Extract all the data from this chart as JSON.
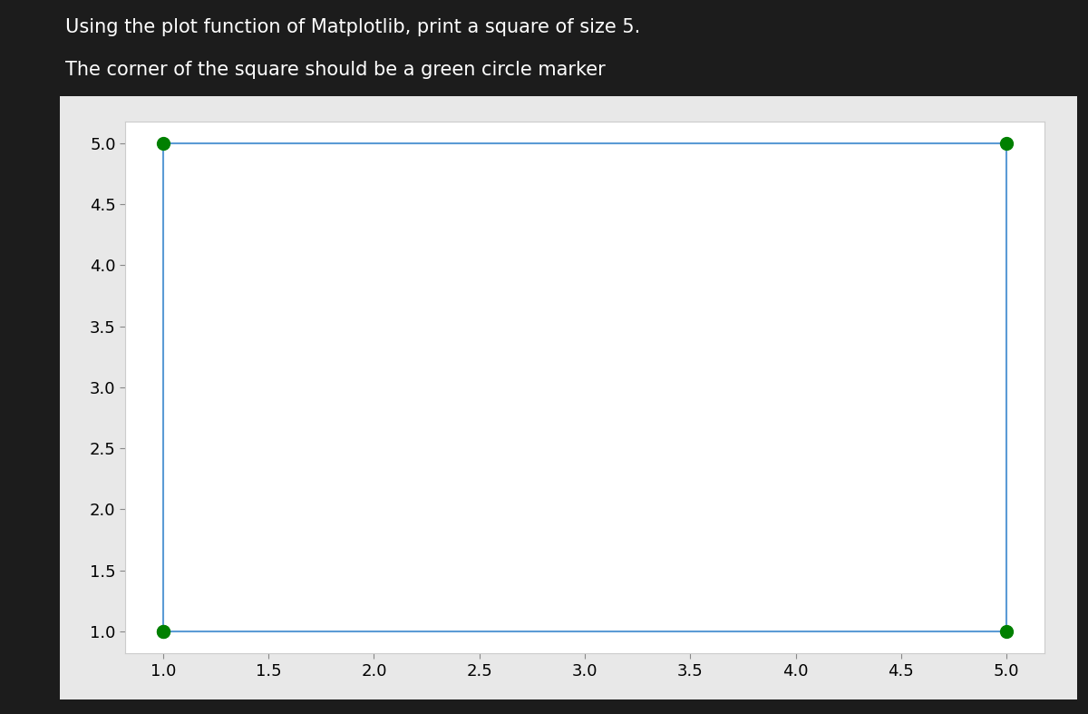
{
  "x": [
    1,
    1,
    5,
    5,
    1
  ],
  "y": [
    1,
    5,
    5,
    1,
    1
  ],
  "line_color": "#5B9BD5",
  "marker": "o",
  "marker_color": "green",
  "marker_size": 10,
  "title_line1": "Using the plot function of Matplotlib, print a square of size 5.",
  "title_line2": "The corner of the square should be a green circle marker",
  "title_fontsize": 15,
  "title_color": "#ffffff",
  "background_color": "#1c1c1c",
  "plot_area_color": "#e8e8e8",
  "plot_bg_color": "#ffffff",
  "fig_width": 12.0,
  "fig_height": 7.87,
  "xticks": [
    1.0,
    1.5,
    2.0,
    2.5,
    3.0,
    3.5,
    4.0,
    4.5,
    5.0
  ],
  "yticks": [
    1.0,
    1.5,
    2.0,
    2.5,
    3.0,
    3.5,
    4.0,
    4.5,
    5.0
  ],
  "xlim": [
    0.82,
    5.18
  ],
  "ylim": [
    0.82,
    5.18
  ]
}
